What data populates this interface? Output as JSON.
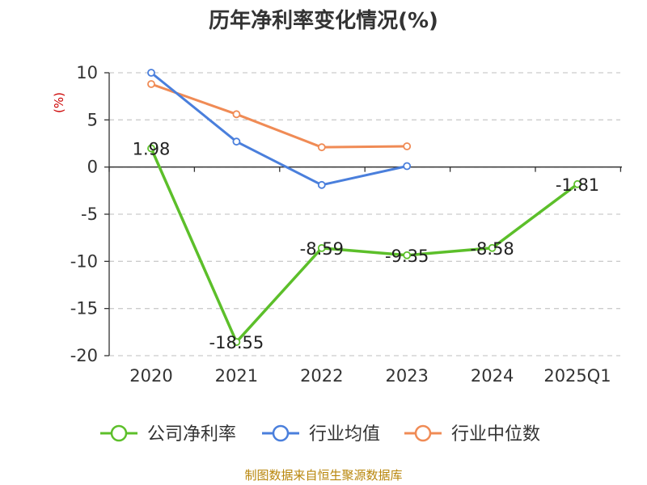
{
  "chart_data": {
    "type": "line",
    "title": "历年净利率变化情况(%)",
    "ylabel": "(%)",
    "xlabel": "",
    "categories": [
      "2020",
      "2021",
      "2022",
      "2023",
      "2024",
      "2025Q1"
    ],
    "ylim": [
      -20,
      10
    ],
    "yticks": [
      10,
      5,
      0,
      -5,
      -10,
      -15,
      -20
    ],
    "grid": true,
    "legend_position": "bottom",
    "series": [
      {
        "name": "公司净利率",
        "color": "#5cbf2a",
        "values": [
          1.98,
          -18.55,
          -8.59,
          -9.35,
          -8.58,
          -1.81
        ],
        "labels": [
          "1.98",
          "-18.55",
          "-8.59",
          "-9.35",
          "-8.58",
          "-1.81"
        ]
      },
      {
        "name": "行业均值",
        "color": "#4a7fdc",
        "values": [
          10.0,
          2.7,
          -1.9,
          0.1,
          null,
          null
        ]
      },
      {
        "name": "行业中位数",
        "color": "#f08b55",
        "values": [
          8.8,
          5.6,
          2.1,
          2.2,
          null,
          null
        ]
      }
    ],
    "source": "制图数据来自恒生聚源数据库"
  }
}
